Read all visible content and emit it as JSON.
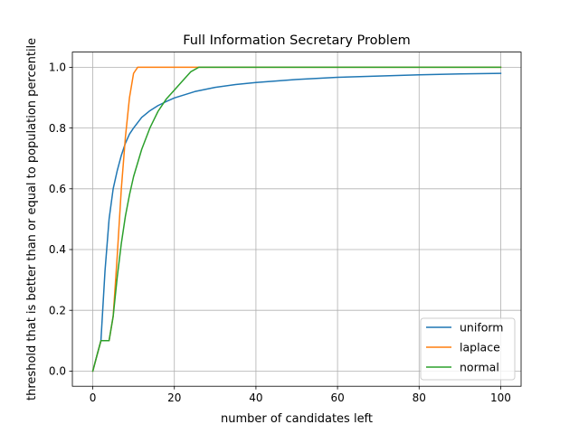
{
  "chart_data": {
    "type": "line",
    "title": "Full Information Secretary Problem",
    "xlabel": "number of candidates left",
    "ylabel": "threshold that is better than or equal to population percentile",
    "xlim": [
      -5,
      105
    ],
    "ylim": [
      -0.05,
      1.05
    ],
    "xticks": [
      0,
      20,
      40,
      60,
      80,
      100
    ],
    "xtick_labels": [
      "0",
      "20",
      "40",
      "60",
      "80",
      "100"
    ],
    "yticks": [
      0.0,
      0.2,
      0.4,
      0.6,
      0.8,
      1.0
    ],
    "ytick_labels": [
      "0.0",
      "0.2",
      "0.4",
      "0.6",
      "0.8",
      "1.0"
    ],
    "grid": true,
    "legend_position": "lower-right",
    "series": [
      {
        "name": "uniform",
        "color": "#1f77b4",
        "x": [
          0,
          1,
          2,
          3,
          4,
          5,
          6,
          7,
          8,
          9,
          10,
          12,
          14,
          16,
          18,
          20,
          25,
          30,
          35,
          40,
          50,
          60,
          70,
          80,
          90,
          100
        ],
        "y": [
          0,
          0.05,
          0.1,
          0.33,
          0.5,
          0.6,
          0.66,
          0.71,
          0.75,
          0.78,
          0.8,
          0.835,
          0.857,
          0.874,
          0.887,
          0.899,
          0.92,
          0.934,
          0.943,
          0.95,
          0.96,
          0.967,
          0.971,
          0.975,
          0.978,
          0.98
        ]
      },
      {
        "name": "laplace",
        "color": "#ff7f0e",
        "x": [
          0,
          1,
          2,
          3,
          4,
          5,
          6,
          7,
          8,
          9,
          10,
          11,
          100
        ],
        "y": [
          0,
          0.05,
          0.1,
          0.1,
          0.1,
          0.18,
          0.38,
          0.6,
          0.77,
          0.9,
          0.98,
          1.0,
          1.0
        ]
      },
      {
        "name": "normal",
        "color": "#2ca02c",
        "x": [
          0,
          1,
          2,
          3,
          4,
          5,
          6,
          7,
          8,
          9,
          10,
          12,
          14,
          16,
          18,
          20,
          22,
          24,
          26,
          28,
          100
        ],
        "y": [
          0,
          0.05,
          0.1,
          0.1,
          0.1,
          0.18,
          0.31,
          0.42,
          0.51,
          0.58,
          0.64,
          0.73,
          0.8,
          0.855,
          0.895,
          0.925,
          0.955,
          0.985,
          1.0,
          1.0,
          1.0
        ]
      }
    ]
  }
}
